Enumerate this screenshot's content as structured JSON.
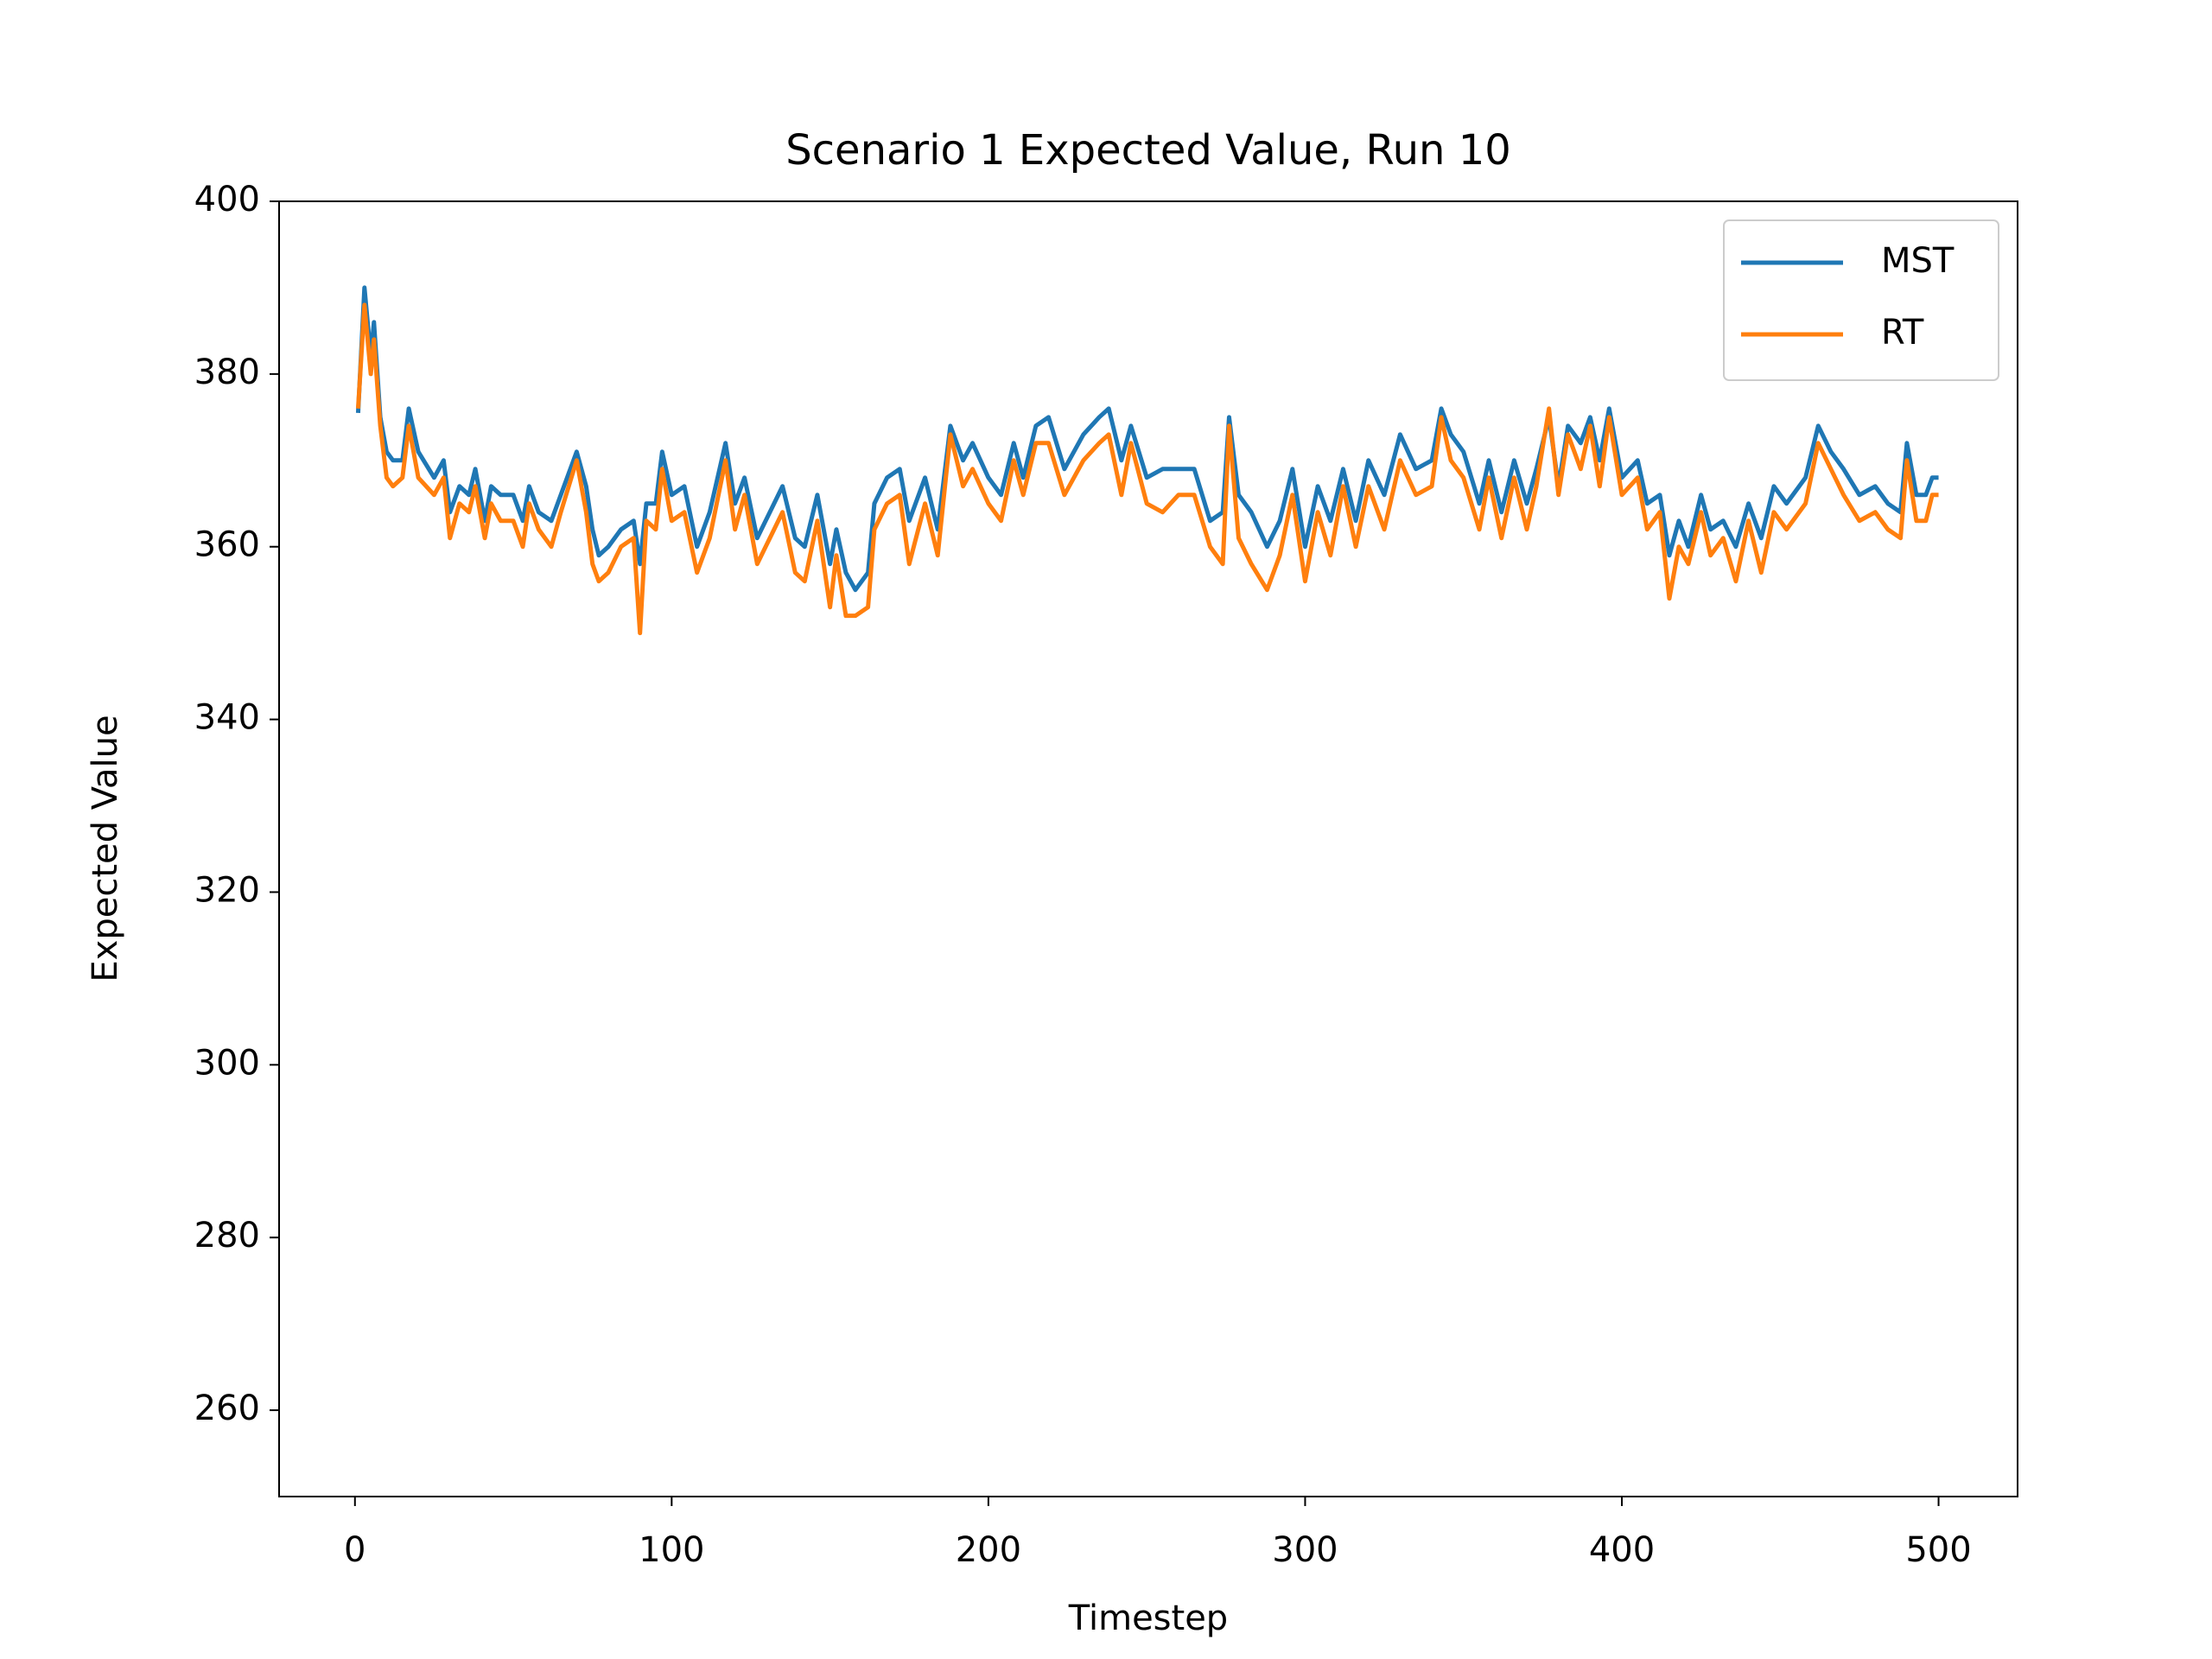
{
  "chart_data": {
    "type": "line",
    "title": "Scenario 1 Expected Value, Run 10",
    "xlabel": "Timestep",
    "ylabel": "Expected Value",
    "x": [
      1,
      3,
      5,
      6,
      8,
      10,
      12,
      15,
      17,
      20,
      25,
      28,
      30,
      33,
      36,
      38,
      41,
      43,
      46,
      50,
      53,
      55,
      58,
      62,
      65,
      70,
      73,
      75,
      77,
      80,
      84,
      88,
      90,
      92,
      95,
      97,
      100,
      104,
      108,
      112,
      117,
      120,
      123,
      127,
      131,
      135,
      139,
      142,
      146,
      150,
      152,
      155,
      158,
      162,
      164,
      168,
      172,
      175,
      180,
      184,
      188,
      192,
      195,
      200,
      204,
      208,
      211,
      215,
      219,
      224,
      230,
      235,
      238,
      242,
      245,
      250,
      255,
      260,
      265,
      270,
      274,
      276,
      279,
      283,
      288,
      292,
      296,
      300,
      304,
      308,
      312,
      316,
      320,
      325,
      330,
      335,
      340,
      343,
      346,
      350,
      355,
      358,
      362,
      366,
      370,
      373,
      377,
      380,
      383,
      387,
      390,
      393,
      396,
      400,
      405,
      408,
      412,
      415,
      418,
      421,
      425,
      428,
      432,
      436,
      440,
      444,
      448,
      452,
      458,
      462,
      466,
      470,
      475,
      480,
      484,
      488,
      490,
      493,
      496,
      498,
      500
    ],
    "series": [
      {
        "name": "MST",
        "color": "#1f77b4",
        "values": [
          375.5,
          390,
          382,
          386,
          375,
          371,
          370,
          370,
          376,
          371,
          368,
          370,
          364,
          367,
          366,
          369,
          363,
          367,
          366,
          366,
          363,
          367,
          364,
          363,
          366,
          371,
          367,
          362,
          359,
          360,
          362,
          363,
          358,
          365,
          365,
          371,
          366,
          367,
          360,
          364,
          372,
          365,
          368,
          361,
          364,
          367,
          361,
          360,
          366,
          358,
          362,
          357,
          355,
          357,
          365,
          368,
          369,
          363,
          368,
          362,
          374,
          370,
          372,
          368,
          366,
          372,
          368,
          374,
          375,
          369,
          373,
          375,
          376,
          370,
          374,
          368,
          369,
          369,
          369,
          363,
          364,
          375,
          366,
          364,
          360,
          363,
          369,
          360,
          367,
          363,
          369,
          363,
          370,
          366,
          373,
          369,
          370,
          376,
          373,
          371,
          365,
          370,
          364,
          370,
          365,
          369,
          375,
          367,
          374,
          372,
          375,
          370,
          376,
          368,
          370,
          365,
          366,
          359,
          363,
          360,
          366,
          362,
          363,
          360,
          365,
          361,
          367,
          365,
          368,
          374,
          371,
          369,
          366,
          367,
          365,
          364,
          372,
          366,
          366,
          368,
          368
        ]
      },
      {
        "name": "RT",
        "color": "#ff7f0e",
        "values": [
          376,
          388,
          380,
          384,
          374,
          368,
          367,
          368,
          374,
          368,
          366,
          368,
          361,
          365,
          364,
          367,
          361,
          365,
          363,
          363,
          360,
          365,
          362,
          360,
          364,
          370,
          364,
          358,
          356,
          357,
          360,
          361,
          350,
          363,
          362,
          369,
          363,
          364,
          357,
          361,
          370,
          362,
          366,
          358,
          361,
          364,
          357,
          356,
          363,
          353,
          359,
          352,
          352,
          353,
          362,
          365,
          366,
          358,
          365,
          359,
          373,
          367,
          369,
          365,
          363,
          370,
          366,
          372,
          372,
          366,
          370,
          372,
          373,
          366,
          372,
          365,
          364,
          366,
          366,
          360,
          358,
          374,
          361,
          358,
          355,
          359,
          366,
          356,
          364,
          359,
          367,
          360,
          367,
          362,
          370,
          366,
          367,
          375,
          370,
          368,
          362,
          368,
          361,
          368,
          362,
          367,
          376,
          366,
          373,
          369,
          374,
          367,
          375,
          366,
          368,
          362,
          364,
          354,
          360,
          358,
          364,
          359,
          361,
          356,
          363,
          357,
          364,
          362,
          365,
          372,
          369,
          366,
          363,
          364,
          362,
          361,
          370,
          363,
          363,
          366,
          366
        ]
      }
    ],
    "xlim": [
      -23.95,
      524.95
    ],
    "xticks": [
      0,
      100,
      200,
      300,
      400,
      500
    ],
    "ylim": [
      250,
      400
    ],
    "yticks": [
      260,
      280,
      300,
      320,
      340,
      360,
      380,
      400
    ],
    "legend": "upper right"
  }
}
